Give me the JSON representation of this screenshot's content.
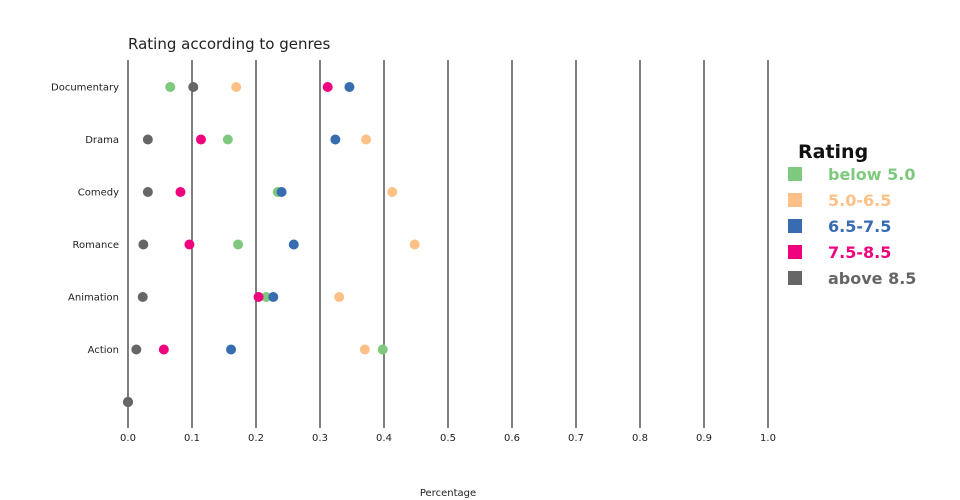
{
  "chart_data": {
    "type": "scatter",
    "title": "Rating according to genres",
    "xlabel": "Percentage",
    "ylabel": "",
    "xlim": [
      0,
      1.0
    ],
    "x_ticks": [
      "0.0",
      "0.1",
      "0.2",
      "0.3",
      "0.4",
      "0.5",
      "0.6",
      "0.7",
      "0.8",
      "0.9",
      "1.0"
    ],
    "categories": [
      "Documentary",
      "Drama",
      "Comedy",
      "Romance",
      "Animation",
      "Action",
      ""
    ],
    "grid": true,
    "legend": {
      "title": "Rating",
      "position": "right"
    },
    "series": [
      {
        "name": "below 5.0",
        "color": "#7fc97f",
        "values": [
          0.066,
          0.156,
          0.234,
          0.172,
          0.216,
          0.398,
          0.0
        ]
      },
      {
        "name": "5.0-6.5",
        "color": "#fdc086",
        "values": [
          0.169,
          0.372,
          0.413,
          0.448,
          0.33,
          0.37,
          0.0
        ]
      },
      {
        "name": "6.5-7.5",
        "color": "#386cb0",
        "values": [
          0.346,
          0.324,
          0.24,
          0.259,
          0.227,
          0.161,
          0.0
        ]
      },
      {
        "name": "7.5-8.5",
        "color": "#f0027f",
        "values": [
          0.312,
          0.114,
          0.082,
          0.096,
          0.204,
          0.056,
          0.0
        ]
      },
      {
        "name": "above 8.5",
        "color": "#666666",
        "values": [
          0.102,
          0.031,
          0.031,
          0.024,
          0.023,
          0.013,
          0.0
        ]
      }
    ]
  }
}
